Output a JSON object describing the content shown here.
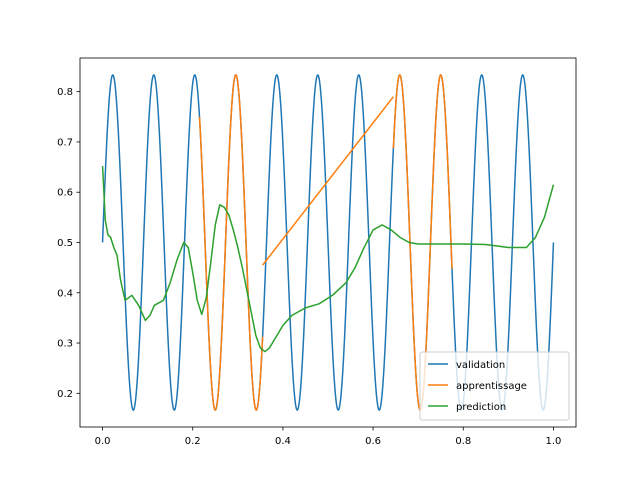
{
  "chart_data": {
    "type": "line",
    "xlim": [
      -0.05,
      1.05
    ],
    "ylim": [
      0.133,
      0.867
    ],
    "x_ticks": [
      0.0,
      0.2,
      0.4,
      0.6,
      0.8,
      1.0
    ],
    "x_tick_labels": [
      "0.0",
      "0.2",
      "0.4",
      "0.6",
      "0.8",
      "1.0"
    ],
    "y_ticks": [
      0.2,
      0.3,
      0.4,
      0.5,
      0.6,
      0.7,
      0.8
    ],
    "y_tick_labels": [
      "0.2",
      "0.3",
      "0.4",
      "0.5",
      "0.6",
      "0.7",
      "0.8"
    ],
    "grid": false,
    "legend_position": "lower-right",
    "series": [
      {
        "name": "validation",
        "color": "#1f77b4",
        "kind": "sine",
        "x_range": [
          0.0,
          1.0
        ],
        "function": "0.5 + 0.3333*sin(2*pi*11*x)"
      },
      {
        "name": "apprentissage",
        "color": "#ff7f0e",
        "kind": "sine_with_gaps",
        "function": "0.5 + 0.3333*sin(2*pi*11*x)",
        "segments": [
          [
            0.215,
            0.355
          ],
          [
            0.645,
            0.775
          ]
        ],
        "linear_segments": [
          {
            "x": [
              0.355,
              0.645
            ],
            "y": [
              0.455,
              0.79
            ]
          }
        ]
      },
      {
        "name": "prediction",
        "color": "#2ca02c",
        "kind": "points",
        "x": [
          0.0,
          0.003,
          0.006,
          0.012,
          0.018,
          0.025,
          0.032,
          0.04,
          0.05,
          0.065,
          0.08,
          0.095,
          0.105,
          0.115,
          0.125,
          0.135,
          0.15,
          0.165,
          0.18,
          0.19,
          0.2,
          0.21,
          0.22,
          0.23,
          0.24,
          0.25,
          0.26,
          0.27,
          0.28,
          0.29,
          0.3,
          0.31,
          0.32,
          0.33,
          0.34,
          0.35,
          0.36,
          0.37,
          0.38,
          0.39,
          0.4,
          0.42,
          0.45,
          0.48,
          0.51,
          0.54,
          0.56,
          0.58,
          0.6,
          0.62,
          0.64,
          0.66,
          0.68,
          0.7,
          0.75,
          0.8,
          0.85,
          0.9,
          0.94,
          0.96,
          0.98,
          1.0
        ],
        "y": [
          0.652,
          0.6,
          0.545,
          0.515,
          0.51,
          0.49,
          0.475,
          0.425,
          0.385,
          0.395,
          0.375,
          0.345,
          0.355,
          0.375,
          0.38,
          0.385,
          0.42,
          0.465,
          0.5,
          0.49,
          0.44,
          0.385,
          0.357,
          0.39,
          0.46,
          0.535,
          0.575,
          0.57,
          0.555,
          0.525,
          0.49,
          0.45,
          0.405,
          0.36,
          0.315,
          0.29,
          0.283,
          0.29,
          0.305,
          0.32,
          0.335,
          0.355,
          0.37,
          0.378,
          0.395,
          0.42,
          0.45,
          0.49,
          0.525,
          0.535,
          0.525,
          0.51,
          0.5,
          0.497,
          0.497,
          0.497,
          0.496,
          0.49,
          0.49,
          0.51,
          0.55,
          0.615
        ]
      }
    ]
  }
}
